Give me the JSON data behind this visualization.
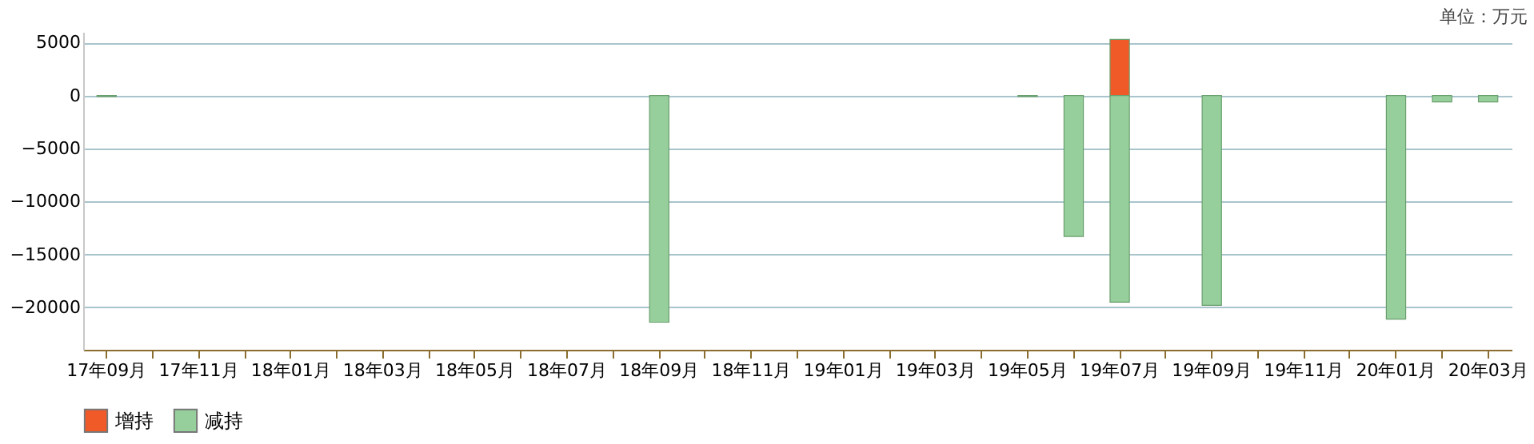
{
  "chart_data": {
    "type": "bar",
    "stacked": true,
    "categories": [
      "17年09月",
      null,
      "17年11月",
      null,
      "18年01月",
      null,
      "18年03月",
      null,
      "18年05月",
      null,
      "18年07月",
      null,
      "18年09月",
      null,
      "18年11月",
      null,
      "19年01月",
      null,
      "19年03月",
      null,
      "19年05月",
      null,
      "19年07月",
      null,
      "19年09月",
      null,
      "19年11月",
      null,
      "20年01月",
      null,
      "20年03月"
    ],
    "series": [
      {
        "name": "增持",
        "color": "#f05a28",
        "values": [
          null,
          null,
          null,
          null,
          null,
          null,
          null,
          null,
          null,
          null,
          null,
          null,
          null,
          null,
          null,
          null,
          null,
          null,
          null,
          null,
          null,
          null,
          5300,
          null,
          null,
          null,
          null,
          null,
          null,
          null,
          null
        ]
      },
      {
        "name": "减持",
        "color": "#96cf9b",
        "values": [
          -100,
          null,
          null,
          null,
          null,
          null,
          null,
          null,
          null,
          null,
          null,
          null,
          -21400,
          null,
          null,
          null,
          null,
          null,
          null,
          null,
          -100,
          -13300,
          -19500,
          null,
          -19800,
          null,
          null,
          null,
          -21100,
          -600,
          -600
        ]
      }
    ],
    "ylim": [
      -24000,
      6000
    ],
    "yticks": [
      -20000,
      -15000,
      -10000,
      -5000,
      0,
      5000
    ],
    "grid": "y",
    "legend": "bottom",
    "annotations": [
      "单位：万元"
    ]
  }
}
